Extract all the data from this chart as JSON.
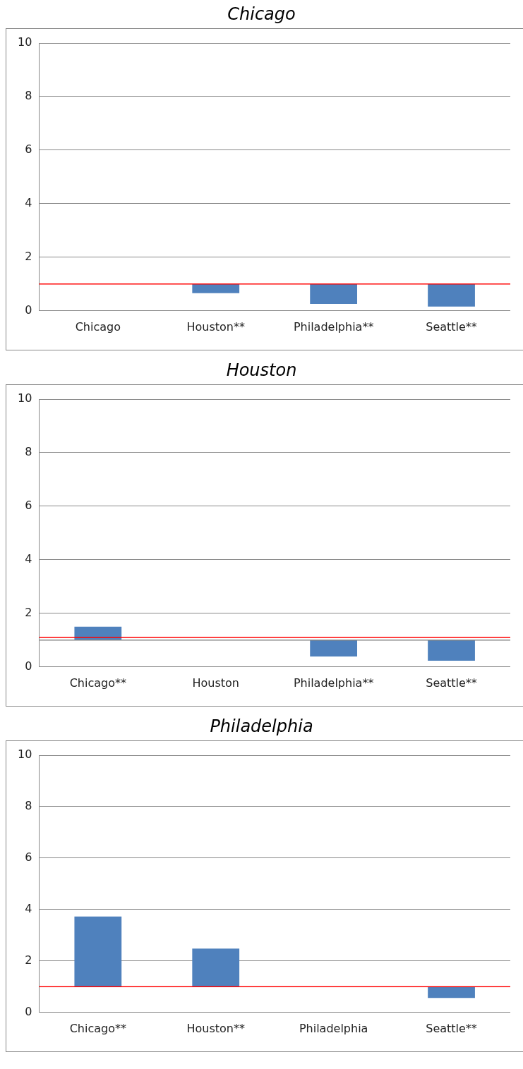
{
  "chart_data": [
    {
      "type": "bar",
      "title": "Chicago",
      "categories": [
        "Chicago",
        "Houston**",
        "Philadelphia**",
        "Seattle**"
      ],
      "base": [
        null,
        1,
        1,
        1
      ],
      "values": [
        null,
        -0.34,
        -0.74,
        -0.84
      ],
      "color": "#4f81bd",
      "ylim": [
        0,
        10
      ],
      "yticks": [
        0,
        2,
        4,
        6,
        8,
        10
      ],
      "grid": "y",
      "ref_lines": [
        {
          "axis": "y",
          "value": 1,
          "color": "#ff0000"
        }
      ]
    },
    {
      "type": "bar",
      "title": "Houston",
      "categories": [
        "Chicago**",
        "Houston",
        "Philadelphia**",
        "Seattle**"
      ],
      "base": [
        1,
        null,
        1,
        1
      ],
      "values": [
        0.5,
        null,
        -0.61,
        -0.77
      ],
      "color": "#4f81bd",
      "ylim": [
        0,
        10
      ],
      "yticks": [
        0,
        2,
        4,
        6,
        8,
        10
      ],
      "grid": "y",
      "ref_lines": [
        {
          "axis": "y",
          "value": 1,
          "color": "#888888"
        },
        {
          "axis": "y",
          "value": 1.1,
          "color": "#ff0000"
        }
      ]
    },
    {
      "type": "bar",
      "title": "Philadelphia",
      "categories": [
        "Chicago**",
        "Houston**",
        "Philadelphia",
        "Seattle**"
      ],
      "base": [
        1,
        1,
        null,
        1
      ],
      "values": [
        2.73,
        1.48,
        null,
        -0.44
      ],
      "color": "#4f81bd",
      "ylim": [
        0,
        10
      ],
      "yticks": [
        0,
        2,
        4,
        6,
        8,
        10
      ],
      "grid": "y",
      "ref_lines": [
        {
          "axis": "y",
          "value": 1,
          "color": "#ff0000"
        }
      ]
    }
  ]
}
